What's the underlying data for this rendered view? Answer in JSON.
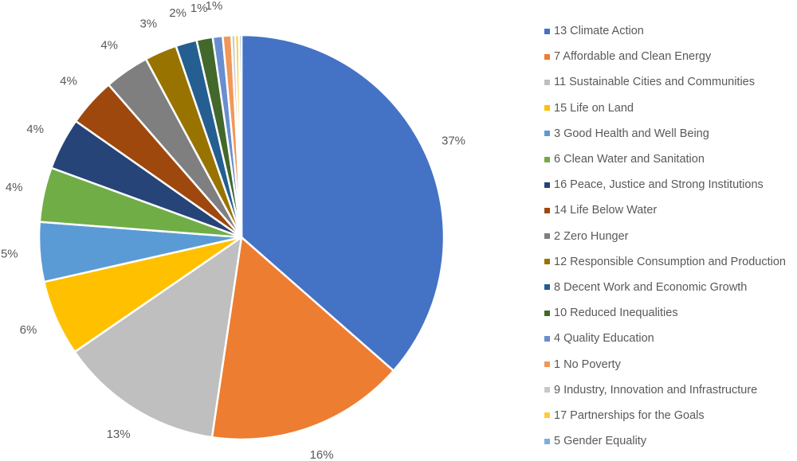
{
  "chart_data": {
    "type": "pie",
    "title": "",
    "legend_position": "right",
    "start_angle_deg": 0,
    "direction": "clockwise",
    "slices": [
      {
        "label": "13 Climate Action",
        "value": 36.8,
        "display_label": "37%",
        "color": "#4472C4"
      },
      {
        "label": "7 Affordable and Clean Energy",
        "value": 16.0,
        "display_label": "16%",
        "color": "#ED7D31"
      },
      {
        "label": "11 Sustainable Cities and Communities",
        "value": 13.2,
        "display_label": "13%",
        "color": "#BFBFBF"
      },
      {
        "label": "15 Life on Land",
        "value": 6.1,
        "display_label": "6%",
        "color": "#FFC000"
      },
      {
        "label": "3 Good Health and Well Being",
        "value": 4.8,
        "display_label": "5%",
        "color": "#5B9BD5"
      },
      {
        "label": "6 Clean Water and Sanitation",
        "value": 4.4,
        "display_label": "4%",
        "color": "#70AD47"
      },
      {
        "label": "16 Peace, Justice and Strong Institutions",
        "value": 4.2,
        "display_label": "4%",
        "color": "#264478"
      },
      {
        "label": "14 Life Below Water",
        "value": 3.9,
        "display_label": "4%",
        "color": "#9E480E"
      },
      {
        "label": "2 Zero Hunger",
        "value": 3.6,
        "display_label": "4%",
        "color": "#7F7F7F"
      },
      {
        "label": "12 Responsible Consumption and Production",
        "value": 2.6,
        "display_label": "3%",
        "color": "#997300"
      },
      {
        "label": "8 Decent Work and Economic Growth",
        "value": 1.7,
        "display_label": "2%",
        "color": "#255E91"
      },
      {
        "label": "10 Reduced Inequalities",
        "value": 1.3,
        "display_label": "1%",
        "color": "#43682B"
      },
      {
        "label": "4 Quality Education",
        "value": 0.8,
        "display_label": "1%",
        "color": "#698ED0"
      },
      {
        "label": "1 No Poverty",
        "value": 0.7,
        "display_label": "",
        "color": "#F1975A"
      },
      {
        "label": "9 Industry, Innovation and Infrastructure",
        "value": 0.3,
        "display_label": "",
        "color": "#C9C9C9"
      },
      {
        "label": "17 Partnerships for the Goals",
        "value": 0.3,
        "display_label": "",
        "color": "#FFCD33"
      },
      {
        "label": "5 Gender Equality",
        "value": 0.2,
        "display_label": "",
        "color": "#7CAFDD"
      }
    ]
  }
}
